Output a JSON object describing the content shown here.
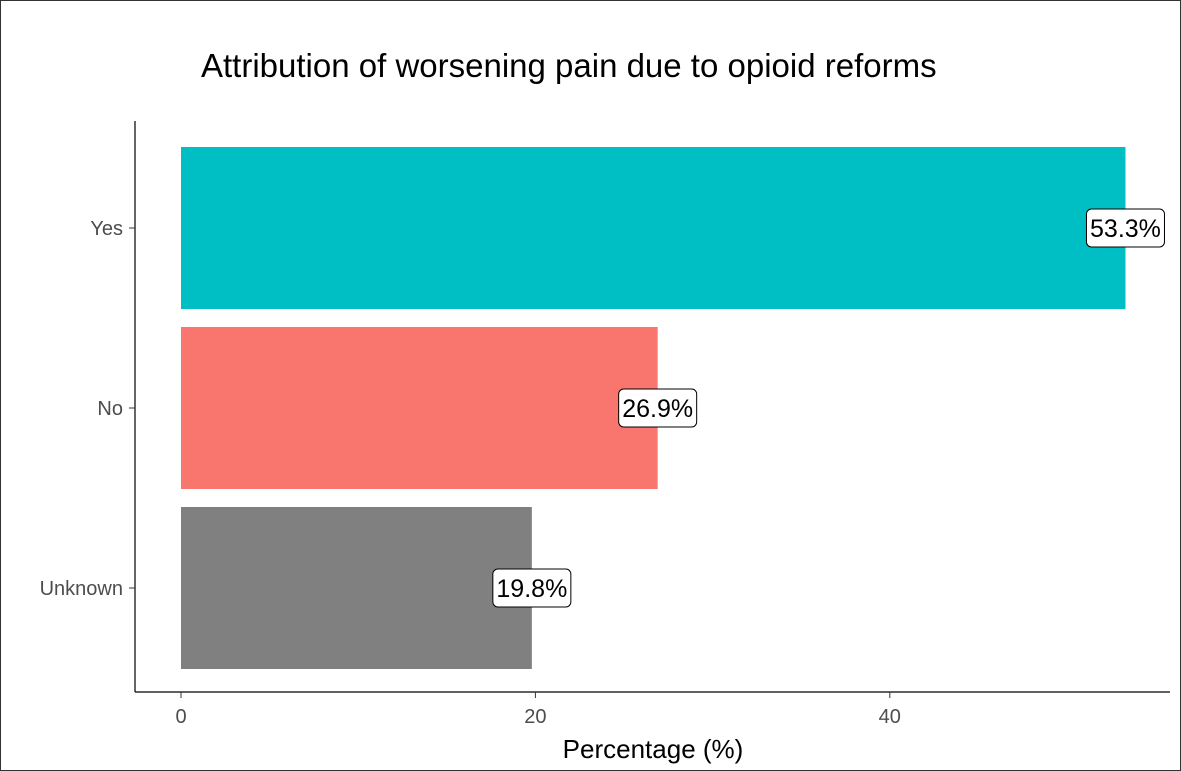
{
  "chart_data": {
    "type": "bar",
    "orientation": "horizontal",
    "title": "Attribution of worsening pain due to opioid reforms",
    "xlabel": "Percentage (%)",
    "ylabel": "",
    "categories": [
      "Yes",
      "No",
      "Unknown"
    ],
    "values": [
      53.3,
      26.9,
      19.8
    ],
    "data_labels": [
      "53.3%",
      "26.9%",
      "19.8%"
    ],
    "colors": [
      "#00BFC4",
      "#F8766D",
      "#808080"
    ],
    "xlim": [
      0,
      56.3
    ],
    "xticks": [
      0,
      20,
      40
    ],
    "xtick_labels": [
      "0",
      "20",
      "40"
    ],
    "grid": false,
    "legend": "none"
  }
}
